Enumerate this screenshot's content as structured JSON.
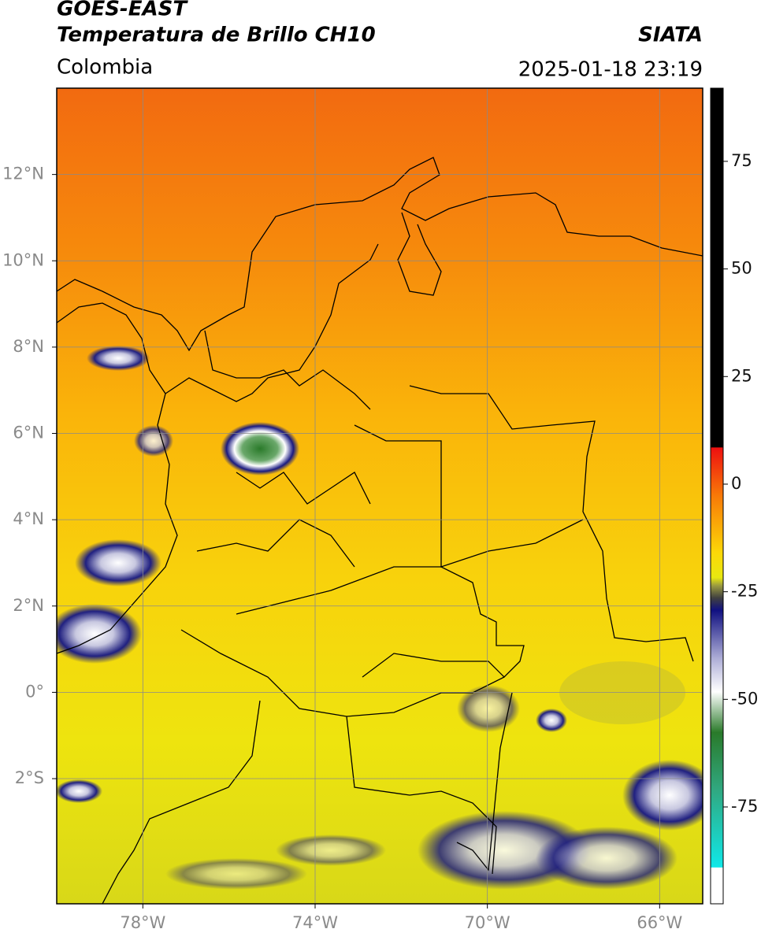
{
  "header": {
    "title": "GOES-EAST",
    "subtitle": "Temperatura de Brillo CH10",
    "source": "SIATA",
    "region": "Colombia",
    "datetime": "2025-01-18 23:19"
  },
  "map": {
    "xlim": [
      -80,
      -65
    ],
    "ylim": [
      -4.9,
      14
    ],
    "xticks": [
      {
        "value": -78,
        "label": "78°W"
      },
      {
        "value": -74,
        "label": "74°W"
      },
      {
        "value": -70,
        "label": "70°W"
      },
      {
        "value": -66,
        "label": "66°W"
      }
    ],
    "yticks": [
      {
        "value": 12,
        "label": "12°N"
      },
      {
        "value": 10,
        "label": "10°N"
      },
      {
        "value": 8,
        "label": "8°N"
      },
      {
        "value": 6,
        "label": "6°N"
      },
      {
        "value": 4,
        "label": "4°N"
      },
      {
        "value": 2,
        "label": "2°N"
      },
      {
        "value": 0,
        "label": "0°"
      },
      {
        "value": -2,
        "label": "2°S"
      }
    ],
    "grid": true
  },
  "colorbar": {
    "lim": [
      -97.5,
      92
    ],
    "ticks": [
      75,
      50,
      25,
      0,
      -25,
      -50,
      -75
    ]
  }
}
